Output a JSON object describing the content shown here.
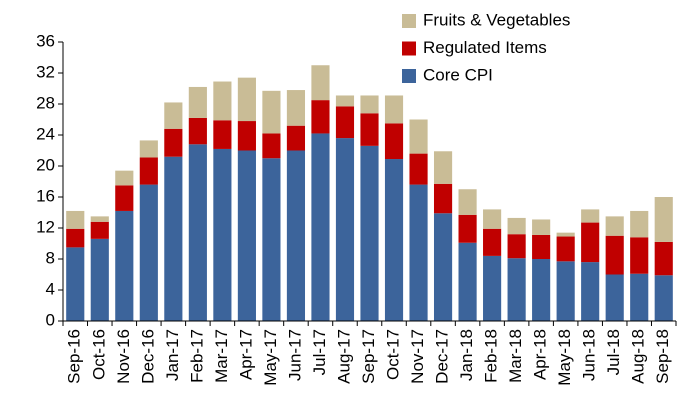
{
  "chart_data": {
    "type": "stacked_bar",
    "categories": [
      "Sep-16",
      "Oct-16",
      "Nov-16",
      "Dec-16",
      "Jan-17",
      "Feb-17",
      "Mar-17",
      "Apr-17",
      "May-17",
      "Jun-17",
      "Jul-17",
      "Aug-17",
      "Sep-17",
      "Oct-17",
      "Nov-17",
      "Dec-17",
      "Jan-18",
      "Feb-18",
      "Mar-18",
      "Apr-18",
      "May-18",
      "Jun-18",
      "Jul-18",
      "Aug-18",
      "Sep-18"
    ],
    "series": [
      {
        "name": "Core CPI",
        "color": "#3c649b",
        "values": [
          9.5,
          10.6,
          14.2,
          17.6,
          21.2,
          22.8,
          22.2,
          22.0,
          21.0,
          22.0,
          24.2,
          23.6,
          22.6,
          20.9,
          17.6,
          13.9,
          10.1,
          8.4,
          8.1,
          8.0,
          7.7,
          7.6,
          6.0,
          6.1,
          5.9
        ]
      },
      {
        "name": "Regulated Items",
        "color": "#c00000",
        "values": [
          2.4,
          2.2,
          3.3,
          3.5,
          3.6,
          3.4,
          3.7,
          3.8,
          3.2,
          3.2,
          4.3,
          4.1,
          4.2,
          4.6,
          4.0,
          3.8,
          3.6,
          3.5,
          3.1,
          3.1,
          3.2,
          5.1,
          5.0,
          4.7,
          4.3
        ]
      },
      {
        "name": "Fruits & Vegetables",
        "color": "#c9bc96",
        "values": [
          2.3,
          0.7,
          1.9,
          2.2,
          3.4,
          4.0,
          5.0,
          5.6,
          5.5,
          4.6,
          4.5,
          1.4,
          2.3,
          3.6,
          4.4,
          4.2,
          3.3,
          2.5,
          2.1,
          2.0,
          0.5,
          1.7,
          2.5,
          3.4,
          5.8
        ]
      }
    ],
    "ylim": [
      0,
      36
    ],
    "yticks": [
      0,
      4,
      8,
      12,
      16,
      20,
      24,
      28,
      32,
      36
    ],
    "grid": false,
    "legend": "top-right"
  }
}
